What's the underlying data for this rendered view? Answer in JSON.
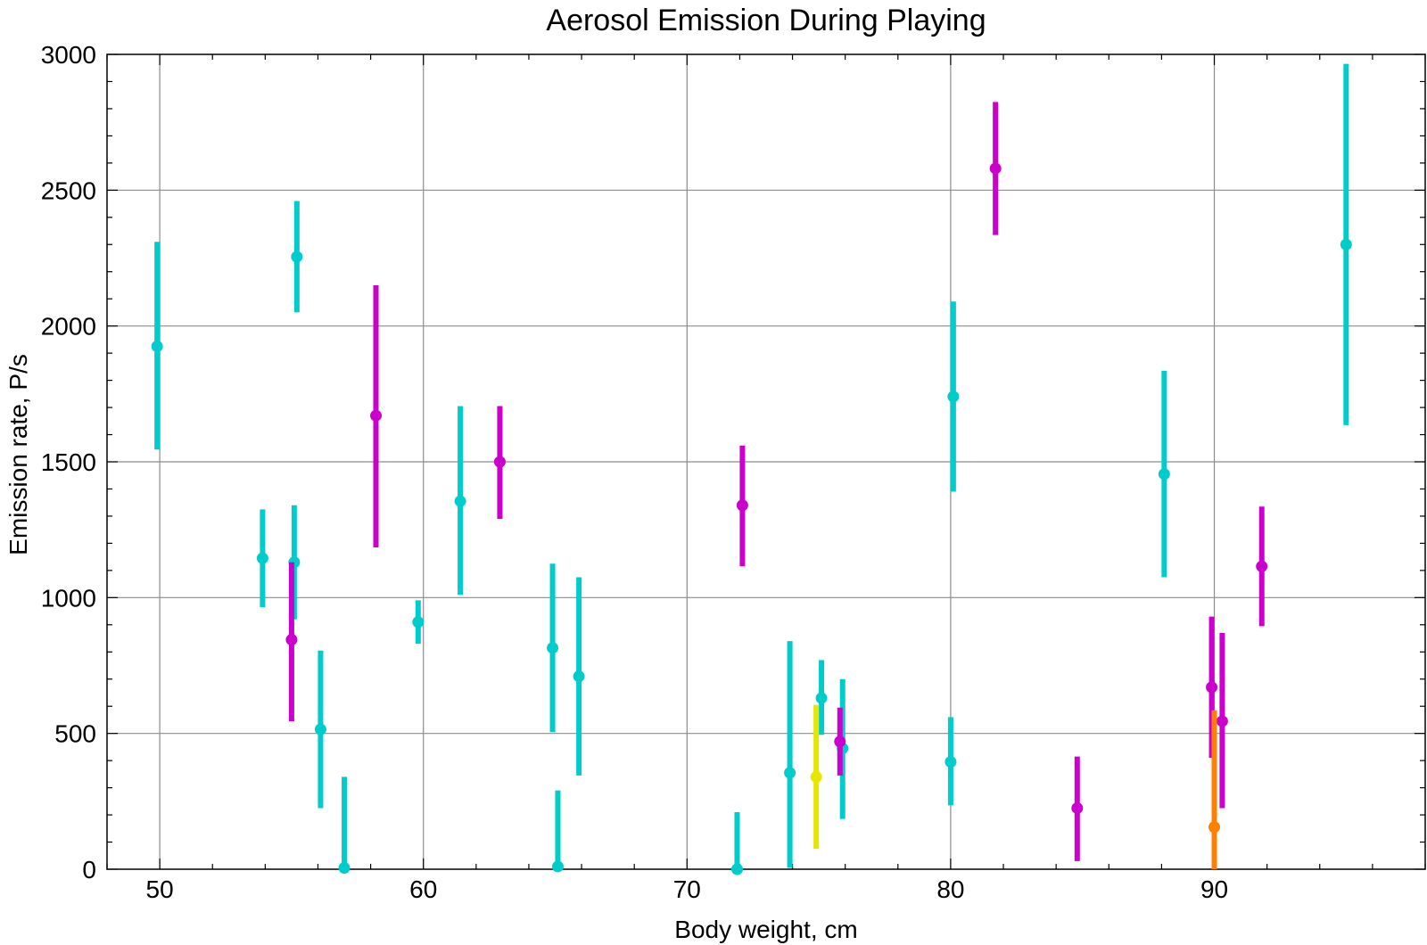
{
  "chart_data": {
    "type": "scatter",
    "title": "Aerosol Emission During Playing",
    "xlabel": "Body weight,  cm",
    "ylabel": "Emission rate,  P/s",
    "xlim": [
      48,
      98
    ],
    "ylim": [
      0,
      3000
    ],
    "x_ticks": [
      "50",
      "60",
      "70",
      "80",
      "90"
    ],
    "y_ticks": [
      "0",
      "500",
      "1000",
      "1500",
      "2000",
      "2500",
      "3000"
    ],
    "grid": true,
    "legend": "none",
    "colors": {
      "cyan": "#00cccc",
      "magenta": "#cc00cc",
      "yellow": "#e6e600",
      "orange": "#ff8000"
    },
    "series": [
      {
        "color": "#00cccc",
        "points": [
          {
            "x": 49.9,
            "y": 1925,
            "ylow": 1545,
            "yhigh": 2310
          },
          {
            "x": 53.9,
            "y": 1145,
            "ylow": 965,
            "yhigh": 1325
          },
          {
            "x": 55.1,
            "y": 1130,
            "ylow": 920,
            "yhigh": 1340
          },
          {
            "x": 55.2,
            "y": 2255,
            "ylow": 2050,
            "yhigh": 2460
          },
          {
            "x": 56.1,
            "y": 515,
            "ylow": 225,
            "yhigh": 805
          },
          {
            "x": 57.0,
            "y": 5,
            "ylow": 0,
            "yhigh": 340
          },
          {
            "x": 59.8,
            "y": 910,
            "ylow": 830,
            "yhigh": 990
          },
          {
            "x": 61.4,
            "y": 1355,
            "ylow": 1010,
            "yhigh": 1705
          },
          {
            "x": 64.9,
            "y": 815,
            "ylow": 505,
            "yhigh": 1125
          },
          {
            "x": 65.1,
            "y": 10,
            "ylow": 0,
            "yhigh": 290
          },
          {
            "x": 65.9,
            "y": 710,
            "ylow": 345,
            "yhigh": 1075
          },
          {
            "x": 71.9,
            "y": 0,
            "ylow": 0,
            "yhigh": 210
          },
          {
            "x": 73.9,
            "y": 355,
            "ylow": 5,
            "yhigh": 840
          },
          {
            "x": 75.1,
            "y": 630,
            "ylow": 495,
            "yhigh": 770
          },
          {
            "x": 75.9,
            "y": 445,
            "ylow": 185,
            "yhigh": 700
          },
          {
            "x": 80.0,
            "y": 395,
            "ylow": 235,
            "yhigh": 560
          },
          {
            "x": 80.1,
            "y": 1740,
            "ylow": 1390,
            "yhigh": 2090
          },
          {
            "x": 88.1,
            "y": 1455,
            "ylow": 1075,
            "yhigh": 1835
          },
          {
            "x": 95.0,
            "y": 2300,
            "ylow": 1635,
            "yhigh": 2965
          }
        ]
      },
      {
        "color": "#cc00cc",
        "points": [
          {
            "x": 55.0,
            "y": 845,
            "ylow": 545,
            "yhigh": 1130
          },
          {
            "x": 58.2,
            "y": 1670,
            "ylow": 1185,
            "yhigh": 2150
          },
          {
            "x": 62.9,
            "y": 1500,
            "ylow": 1290,
            "yhigh": 1705
          },
          {
            "x": 72.1,
            "y": 1340,
            "ylow": 1115,
            "yhigh": 1560
          },
          {
            "x": 75.8,
            "y": 470,
            "ylow": 345,
            "yhigh": 595
          },
          {
            "x": 81.7,
            "y": 2580,
            "ylow": 2335,
            "yhigh": 2825
          },
          {
            "x": 84.8,
            "y": 225,
            "ylow": 30,
            "yhigh": 415
          },
          {
            "x": 89.9,
            "y": 670,
            "ylow": 410,
            "yhigh": 930
          },
          {
            "x": 90.3,
            "y": 545,
            "ylow": 225,
            "yhigh": 870
          },
          {
            "x": 91.8,
            "y": 1115,
            "ylow": 895,
            "yhigh": 1335
          }
        ]
      },
      {
        "color": "#e6e600",
        "points": [
          {
            "x": 74.9,
            "y": 340,
            "ylow": 75,
            "yhigh": 605
          }
        ]
      },
      {
        "color": "#ff8000",
        "points": [
          {
            "x": 90.0,
            "y": 155,
            "ylow": 0,
            "yhigh": 585
          }
        ]
      }
    ]
  }
}
